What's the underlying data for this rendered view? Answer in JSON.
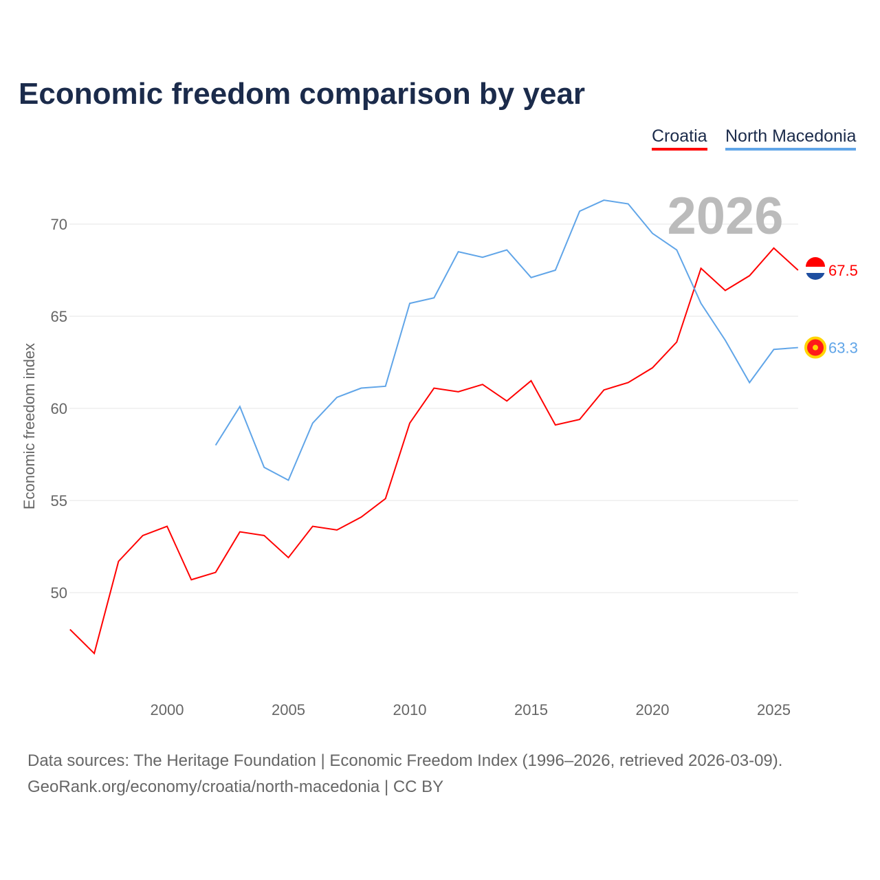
{
  "title": "Economic freedom comparison by year",
  "footer": {
    "line1": "Data sources: The Heritage Foundation | Economic Freedom Index (1996–2026, retrieved 2026-03-09).",
    "line2": "GeoRank.org/economy/croatia/north-macedonia | CC BY"
  },
  "chart_data": {
    "type": "line",
    "title": "Economic freedom comparison by year",
    "ylabel": "Economic freedom index",
    "xlabel": "",
    "year_watermark": "2026",
    "xlim": [
      1996,
      2026
    ],
    "ylim": [
      45,
      72.5
    ],
    "xticks": [
      2000,
      2005,
      2010,
      2015,
      2020,
      2025
    ],
    "yticks": [
      50,
      55,
      60,
      65,
      70
    ],
    "grid": true,
    "legend_position": "top-right",
    "series": [
      {
        "name": "Croatia",
        "color": "#ff0000",
        "end_label": "67.5",
        "start": 1996,
        "values": [
          48.0,
          46.7,
          51.7,
          53.1,
          53.6,
          50.7,
          51.1,
          53.3,
          53.1,
          51.9,
          53.6,
          53.4,
          54.1,
          55.1,
          59.2,
          61.1,
          60.9,
          61.3,
          60.4,
          61.5,
          59.1,
          59.4,
          61.0,
          61.4,
          62.2,
          63.6,
          67.6,
          66.4,
          67.2,
          68.7,
          67.5
        ]
      },
      {
        "name": "North Macedonia",
        "color": "#60a5e8",
        "end_label": "63.3",
        "start": 2002,
        "values": [
          58.0,
          60.1,
          56.8,
          56.1,
          59.2,
          60.6,
          61.1,
          61.2,
          65.7,
          66.0,
          68.5,
          68.2,
          68.6,
          67.1,
          67.5,
          70.7,
          71.3,
          71.1,
          69.5,
          68.6,
          65.7,
          63.7,
          61.4,
          63.2,
          63.3
        ]
      }
    ]
  }
}
